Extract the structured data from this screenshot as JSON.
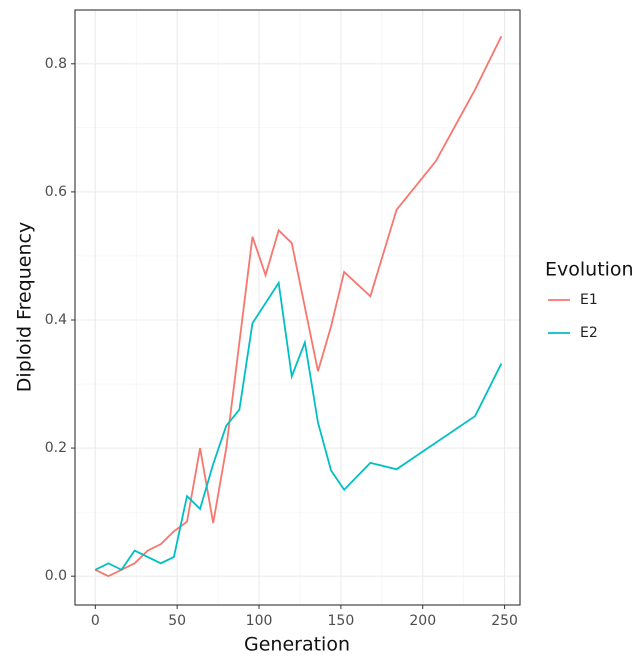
{
  "chart_data": {
    "type": "line",
    "xlabel": "Generation",
    "ylabel": "Diploid Frequency",
    "legend_title": "Evolution",
    "legend": "right",
    "grid": true,
    "xlim": [
      -12.4,
      259.4
    ],
    "xticks": [
      0,
      50,
      100,
      150,
      200,
      250
    ],
    "ylim": [
      -0.045,
      0.884
    ],
    "yticks": [
      {
        "value": 0,
        "label": "0.0"
      },
      0.2,
      0.4,
      0.6,
      0.8
    ],
    "series": [
      {
        "name": "E1",
        "color": "#F8766D",
        "x": [
          0,
          8,
          24,
          32,
          40,
          48,
          56,
          64,
          72,
          80,
          96,
          104,
          112,
          120,
          136,
          144,
          152,
          168,
          184,
          208,
          232,
          248
        ],
        "values": [
          0.01,
          0.0,
          0.02,
          0.04,
          0.05,
          0.07,
          0.085,
          0.2,
          0.083,
          0.2,
          0.53,
          0.47,
          0.54,
          0.52,
          0.32,
          0.39,
          0.475,
          0.437,
          0.572,
          0.648,
          0.76,
          0.843
        ]
      },
      {
        "name": "E2",
        "color": "#00BFC4",
        "x": [
          0,
          8,
          16,
          24,
          40,
          48,
          56,
          64,
          72,
          80,
          88,
          96,
          112,
          120,
          128,
          136,
          144,
          152,
          168,
          184,
          232,
          248
        ],
        "values": [
          0.01,
          0.02,
          0.01,
          0.04,
          0.02,
          0.03,
          0.125,
          0.105,
          0.175,
          0.235,
          0.26,
          0.395,
          0.458,
          0.312,
          0.365,
          0.24,
          0.165,
          0.135,
          0.177,
          0.167,
          0.25,
          0.332
        ]
      }
    ]
  }
}
